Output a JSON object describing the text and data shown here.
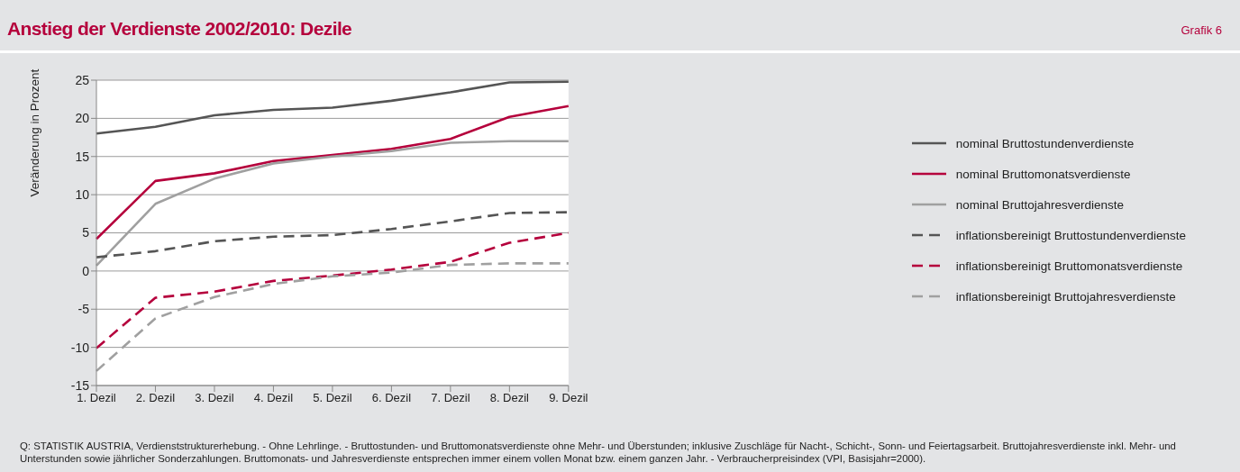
{
  "chart_data": {
    "type": "line",
    "title": "Anstieg der Verdienste 2002/2010: Dezile",
    "ylabel": "Veränderung in Prozent",
    "categories": [
      "1. Dezil",
      "2. Dezil",
      "3. Dezil",
      "4. Dezil",
      "5. Dezil",
      "6. Dezil",
      "7. Dezil",
      "8. Dezil",
      "9. Dezil"
    ],
    "series": [
      {
        "name": "nominal Bruttostundenverdienste",
        "color": "#555555",
        "line_style": "solid",
        "values": [
          18.0,
          18.9,
          20.4,
          21.1,
          21.4,
          22.3,
          23.4,
          24.7,
          24.8
        ]
      },
      {
        "name": "nominal Bruttomonatsverdienste",
        "color": "#b5003c",
        "line_style": "solid",
        "values": [
          4.2,
          11.8,
          12.8,
          14.4,
          15.2,
          16.0,
          17.3,
          20.2,
          21.6
        ]
      },
      {
        "name": "nominal Bruttojahresverdienste",
        "color": "#a0a0a0",
        "line_style": "solid",
        "values": [
          0.7,
          8.8,
          12.1,
          14.1,
          15.0,
          15.7,
          16.8,
          17.0,
          17.0
        ]
      },
      {
        "name": "inflationsbereinigt Bruttostundenverdienste",
        "color": "#555555",
        "line_style": "dashed",
        "values": [
          1.8,
          2.6,
          3.9,
          4.5,
          4.7,
          5.5,
          6.5,
          7.6,
          7.7
        ]
      },
      {
        "name": "inflationsbereinigt Bruttomonatsverdienste",
        "color": "#b5003c",
        "line_style": "dashed",
        "values": [
          -10.1,
          -3.5,
          -2.7,
          -1.3,
          -0.6,
          0.2,
          1.2,
          3.7,
          5.0
        ]
      },
      {
        "name": "inflationsbereinigt Bruttojahresverdienste",
        "color": "#a0a0a0",
        "line_style": "dashed",
        "values": [
          -13.1,
          -6.2,
          -3.4,
          -1.7,
          -0.7,
          -0.2,
          0.8,
          1.0,
          1.0
        ]
      }
    ],
    "ylim": [
      -15,
      25
    ],
    "yticks": [
      -15,
      -10,
      -5,
      0,
      5,
      10,
      15,
      20,
      25
    ],
    "grid": "y",
    "legend": "right",
    "marker": "none",
    "annotations": [
      "Grafik 6",
      "Q: STATISTIK AUSTRIA, Verdienststrukturerhebung. - Ohne Lehrlinge. - Bruttostunden- und Bruttomonatsverdienste ohne Mehr- und Überstunden; inklusive Zuschläge für Nacht-, Schicht-, Sonn- und Feiertagsarbeit. Bruttojahresverdienste inkl. Mehr- und Unterstunden sowie jährlicher Sonderzahlungen. Bruttomonats- und Jahresverdienste entsprechen immer einem vollen Monat bzw. einem ganzen Jahr. - Verbraucherpreisindex (VPI, Basisjahr=2000)."
    ]
  }
}
